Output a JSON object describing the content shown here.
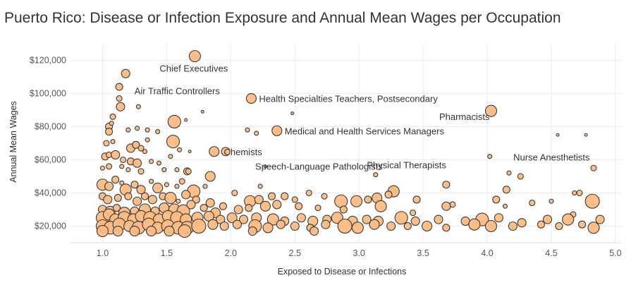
{
  "title": "Puerto Rico: Disease or Infection Exposure and Annual Mean Wages per Occupation",
  "chart_data": {
    "type": "scatter",
    "title": "Puerto Rico: Disease or Infection Exposure and Annual Mean Wages per Occupation",
    "xlabel": "Exposed to Disease or Infections",
    "ylabel": "Annual Mean Wages",
    "xlim": [
      0.75,
      5.05
    ],
    "ylim": [
      10000,
      130000
    ],
    "x_ticks": [
      "1.0",
      "1.5",
      "2.0",
      "2.5",
      "3.0",
      "3.5",
      "4.0",
      "4.5",
      "5.0"
    ],
    "y_ticks": [
      "$20,000",
      "$40,000",
      "$60,000",
      "$80,000",
      "$100,000",
      "$120,000"
    ],
    "grid": "both",
    "marker_color": "#FDBB82",
    "marker_edge": "#3A3A3A",
    "annotations": [
      {
        "text": "Chief Executives",
        "x": 1.72,
        "y": 122500
      },
      {
        "text": "Air Traffic Controllers",
        "x": 1.15,
        "y": 112000
      },
      {
        "text": "Health Specialties Teachers, Postsecondary",
        "x": 2.16,
        "y": 97000
      },
      {
        "text": "Medical and Health Services Managers",
        "x": 2.36,
        "y": 77500
      },
      {
        "text": "Pharmacists",
        "x": 4.03,
        "y": 89500
      },
      {
        "text": "Chemists",
        "x": 1.88,
        "y": 65000
      },
      {
        "text": "Nurse Anesthetists",
        "x": 4.8,
        "y": 55000
      },
      {
        "text": "Speech-Language Pathologists",
        "x": 2.18,
        "y": 54000
      },
      {
        "text": "Physical Therapists",
        "x": 3.68,
        "y": 55000
      }
    ],
    "points": [
      {
        "x": 1.72,
        "y": 122500,
        "s": 8
      },
      {
        "x": 1.18,
        "y": 112000,
        "s": 6
      },
      {
        "x": 1.13,
        "y": 104000,
        "s": 5
      },
      {
        "x": 2.16,
        "y": 97000,
        "s": 7
      },
      {
        "x": 1.13,
        "y": 97000,
        "s": 4
      },
      {
        "x": 1.14,
        "y": 92000,
        "s": 6
      },
      {
        "x": 1.28,
        "y": 92000,
        "s": 3
      },
      {
        "x": 1.08,
        "y": 86000,
        "s": 4
      },
      {
        "x": 1.05,
        "y": 80000,
        "s": 5
      },
      {
        "x": 1.07,
        "y": 82000,
        "s": 3
      },
      {
        "x": 1.78,
        "y": 89000,
        "s": 2
      },
      {
        "x": 2.48,
        "y": 88000,
        "s": 2
      },
      {
        "x": 4.03,
        "y": 89500,
        "s": 8
      },
      {
        "x": 1.56,
        "y": 83000,
        "s": 9
      },
      {
        "x": 1.05,
        "y": 77000,
        "s": 5
      },
      {
        "x": 1.2,
        "y": 78000,
        "s": 3
      },
      {
        "x": 1.27,
        "y": 79000,
        "s": 3
      },
      {
        "x": 1.35,
        "y": 78000,
        "s": 3
      },
      {
        "x": 1.43,
        "y": 77000,
        "s": 3
      },
      {
        "x": 1.65,
        "y": 84000,
        "s": 2
      },
      {
        "x": 2.13,
        "y": 78000,
        "s": 3
      },
      {
        "x": 2.2,
        "y": 76000,
        "s": 3
      },
      {
        "x": 2.36,
        "y": 77500,
        "s": 7
      },
      {
        "x": 4.55,
        "y": 75000,
        "s": 2
      },
      {
        "x": 4.77,
        "y": 75000,
        "s": 2
      },
      {
        "x": 1.03,
        "y": 70000,
        "s": 4
      },
      {
        "x": 1.08,
        "y": 71000,
        "s": 3
      },
      {
        "x": 1.22,
        "y": 67000,
        "s": 6
      },
      {
        "x": 1.26,
        "y": 69000,
        "s": 5
      },
      {
        "x": 1.3,
        "y": 67000,
        "s": 4
      },
      {
        "x": 1.35,
        "y": 72000,
        "s": 3
      },
      {
        "x": 1.55,
        "y": 71000,
        "s": 9
      },
      {
        "x": 1.6,
        "y": 66000,
        "s": 3
      },
      {
        "x": 1.02,
        "y": 62000,
        "s": 5
      },
      {
        "x": 1.05,
        "y": 63000,
        "s": 4
      },
      {
        "x": 1.1,
        "y": 63000,
        "s": 6
      },
      {
        "x": 1.16,
        "y": 60000,
        "s": 4
      },
      {
        "x": 1.22,
        "y": 59000,
        "s": 5
      },
      {
        "x": 1.27,
        "y": 58000,
        "s": 6
      },
      {
        "x": 1.33,
        "y": 65000,
        "s": 3
      },
      {
        "x": 1.38,
        "y": 59000,
        "s": 3
      },
      {
        "x": 1.44,
        "y": 58000,
        "s": 3
      },
      {
        "x": 1.53,
        "y": 62000,
        "s": 3
      },
      {
        "x": 1.68,
        "y": 65000,
        "s": 2
      },
      {
        "x": 1.87,
        "y": 65000,
        "s": 7
      },
      {
        "x": 1.96,
        "y": 65000,
        "s": 6
      },
      {
        "x": 4.02,
        "y": 62000,
        "s": 3
      },
      {
        "x": 1.0,
        "y": 55000,
        "s": 3
      },
      {
        "x": 1.05,
        "y": 56000,
        "s": 4
      },
      {
        "x": 1.15,
        "y": 56000,
        "s": 3
      },
      {
        "x": 1.2,
        "y": 54000,
        "s": 3
      },
      {
        "x": 1.3,
        "y": 53000,
        "s": 4
      },
      {
        "x": 1.48,
        "y": 54000,
        "s": 3
      },
      {
        "x": 1.58,
        "y": 54000,
        "s": 3
      },
      {
        "x": 1.66,
        "y": 53000,
        "s": 5
      },
      {
        "x": 1.67,
        "y": 53000,
        "s": 4
      },
      {
        "x": 1.84,
        "y": 50000,
        "s": 7
      },
      {
        "x": 2.27,
        "y": 56000,
        "s": 2
      },
      {
        "x": 3.13,
        "y": 51000,
        "s": 3
      },
      {
        "x": 4.17,
        "y": 52000,
        "s": 3
      },
      {
        "x": 4.26,
        "y": 50000,
        "s": 4
      },
      {
        "x": 4.83,
        "y": 55000,
        "s": 4
      },
      {
        "x": 1.0,
        "y": 45000,
        "s": 8
      },
      {
        "x": 1.05,
        "y": 44000,
        "s": 6
      },
      {
        "x": 1.1,
        "y": 48000,
        "s": 5
      },
      {
        "x": 1.15,
        "y": 46000,
        "s": 3
      },
      {
        "x": 1.18,
        "y": 42000,
        "s": 8
      },
      {
        "x": 1.25,
        "y": 45000,
        "s": 5
      },
      {
        "x": 1.3,
        "y": 42000,
        "s": 6
      },
      {
        "x": 1.38,
        "y": 47000,
        "s": 3
      },
      {
        "x": 1.43,
        "y": 43000,
        "s": 7
      },
      {
        "x": 1.5,
        "y": 45000,
        "s": 3
      },
      {
        "x": 1.58,
        "y": 44000,
        "s": 3
      },
      {
        "x": 1.62,
        "y": 47000,
        "s": 4
      },
      {
        "x": 1.71,
        "y": 41000,
        "s": 9
      },
      {
        "x": 1.8,
        "y": 44000,
        "s": 3
      },
      {
        "x": 2.23,
        "y": 44000,
        "s": 3
      },
      {
        "x": 3.26,
        "y": 42000,
        "s": 3
      },
      {
        "x": 3.27,
        "y": 41000,
        "s": 8
      },
      {
        "x": 3.68,
        "y": 45000,
        "s": 5
      },
      {
        "x": 4.15,
        "y": 42000,
        "s": 5
      },
      {
        "x": 4.68,
        "y": 40000,
        "s": 3
      },
      {
        "x": 4.72,
        "y": 40000,
        "s": 4
      },
      {
        "x": 1.0,
        "y": 38000,
        "s": 5
      },
      {
        "x": 1.04,
        "y": 36000,
        "s": 6
      },
      {
        "x": 1.12,
        "y": 37000,
        "s": 5
      },
      {
        "x": 1.2,
        "y": 38000,
        "s": 5
      },
      {
        "x": 1.27,
        "y": 35000,
        "s": 6
      },
      {
        "x": 1.33,
        "y": 38000,
        "s": 5
      },
      {
        "x": 1.39,
        "y": 36000,
        "s": 6
      },
      {
        "x": 1.47,
        "y": 38000,
        "s": 5
      },
      {
        "x": 1.53,
        "y": 37000,
        "s": 8
      },
      {
        "x": 1.59,
        "y": 35000,
        "s": 3
      },
      {
        "x": 1.65,
        "y": 39000,
        "s": 6
      },
      {
        "x": 1.73,
        "y": 36000,
        "s": 5
      },
      {
        "x": 1.84,
        "y": 34000,
        "s": 6
      },
      {
        "x": 2.03,
        "y": 40000,
        "s": 4
      },
      {
        "x": 2.15,
        "y": 35000,
        "s": 8
      },
      {
        "x": 2.22,
        "y": 36000,
        "s": 6
      },
      {
        "x": 2.32,
        "y": 38000,
        "s": 5
      },
      {
        "x": 2.42,
        "y": 38000,
        "s": 5
      },
      {
        "x": 2.5,
        "y": 36000,
        "s": 4
      },
      {
        "x": 2.61,
        "y": 40000,
        "s": 4
      },
      {
        "x": 2.73,
        "y": 38000,
        "s": 4
      },
      {
        "x": 2.86,
        "y": 35000,
        "s": 9
      },
      {
        "x": 2.98,
        "y": 35000,
        "s": 8
      },
      {
        "x": 3.07,
        "y": 36000,
        "s": 5
      },
      {
        "x": 3.14,
        "y": 37000,
        "s": 7
      },
      {
        "x": 3.23,
        "y": 39000,
        "s": 5
      },
      {
        "x": 3.45,
        "y": 36000,
        "s": 5
      },
      {
        "x": 3.73,
        "y": 33000,
        "s": 4
      },
      {
        "x": 4.07,
        "y": 36000,
        "s": 5
      },
      {
        "x": 4.35,
        "y": 34000,
        "s": 4
      },
      {
        "x": 4.5,
        "y": 35000,
        "s": 3
      },
      {
        "x": 4.82,
        "y": 35000,
        "s": 10
      },
      {
        "x": 1.0,
        "y": 30000,
        "s": 6
      },
      {
        "x": 1.06,
        "y": 29000,
        "s": 7
      },
      {
        "x": 1.11,
        "y": 31000,
        "s": 5
      },
      {
        "x": 1.17,
        "y": 28000,
        "s": 8
      },
      {
        "x": 1.25,
        "y": 29000,
        "s": 6
      },
      {
        "x": 1.33,
        "y": 30000,
        "s": 8
      },
      {
        "x": 1.41,
        "y": 29000,
        "s": 6
      },
      {
        "x": 1.48,
        "y": 31000,
        "s": 7
      },
      {
        "x": 1.56,
        "y": 30000,
        "s": 8
      },
      {
        "x": 1.63,
        "y": 29000,
        "s": 9
      },
      {
        "x": 1.69,
        "y": 33000,
        "s": 6
      },
      {
        "x": 1.79,
        "y": 31000,
        "s": 5
      },
      {
        "x": 1.88,
        "y": 28000,
        "s": 7
      },
      {
        "x": 1.94,
        "y": 32000,
        "s": 5
      },
      {
        "x": 2.06,
        "y": 30000,
        "s": 6
      },
      {
        "x": 2.14,
        "y": 31000,
        "s": 5
      },
      {
        "x": 2.27,
        "y": 32000,
        "s": 7
      },
      {
        "x": 2.36,
        "y": 33000,
        "s": 6
      },
      {
        "x": 2.53,
        "y": 32000,
        "s": 5
      },
      {
        "x": 2.68,
        "y": 31000,
        "s": 4
      },
      {
        "x": 2.88,
        "y": 30000,
        "s": 5
      },
      {
        "x": 3.17,
        "y": 32000,
        "s": 8
      },
      {
        "x": 3.42,
        "y": 28000,
        "s": 4
      },
      {
        "x": 3.68,
        "y": 32000,
        "s": 6
      },
      {
        "x": 4.14,
        "y": 32000,
        "s": 3
      },
      {
        "x": 4.67,
        "y": 27000,
        "s": 4
      },
      {
        "x": 1.0,
        "y": 25000,
        "s": 9
      },
      {
        "x": 1.05,
        "y": 27000,
        "s": 8
      },
      {
        "x": 1.1,
        "y": 24000,
        "s": 8
      },
      {
        "x": 1.17,
        "y": 25000,
        "s": 9
      },
      {
        "x": 1.24,
        "y": 24000,
        "s": 8
      },
      {
        "x": 1.3,
        "y": 26000,
        "s": 8
      },
      {
        "x": 1.37,
        "y": 25000,
        "s": 9
      },
      {
        "x": 1.44,
        "y": 24000,
        "s": 8
      },
      {
        "x": 1.51,
        "y": 26000,
        "s": 8
      },
      {
        "x": 1.58,
        "y": 25000,
        "s": 9
      },
      {
        "x": 1.65,
        "y": 24000,
        "s": 8
      },
      {
        "x": 1.74,
        "y": 25000,
        "s": 8
      },
      {
        "x": 1.83,
        "y": 26000,
        "s": 7
      },
      {
        "x": 1.92,
        "y": 24000,
        "s": 6
      },
      {
        "x": 2.01,
        "y": 25000,
        "s": 7
      },
      {
        "x": 2.1,
        "y": 24000,
        "s": 6
      },
      {
        "x": 2.2,
        "y": 25000,
        "s": 7
      },
      {
        "x": 2.33,
        "y": 24000,
        "s": 8
      },
      {
        "x": 2.42,
        "y": 23000,
        "s": 6
      },
      {
        "x": 2.55,
        "y": 25000,
        "s": 6
      },
      {
        "x": 2.64,
        "y": 23000,
        "s": 7
      },
      {
        "x": 2.75,
        "y": 24000,
        "s": 6
      },
      {
        "x": 2.83,
        "y": 25000,
        "s": 8
      },
      {
        "x": 2.95,
        "y": 23000,
        "s": 7
      },
      {
        "x": 3.06,
        "y": 24000,
        "s": 6
      },
      {
        "x": 3.15,
        "y": 23000,
        "s": 7
      },
      {
        "x": 3.33,
        "y": 25000,
        "s": 9
      },
      {
        "x": 3.44,
        "y": 23000,
        "s": 6
      },
      {
        "x": 3.62,
        "y": 24000,
        "s": 6
      },
      {
        "x": 3.83,
        "y": 23000,
        "s": 6
      },
      {
        "x": 3.96,
        "y": 24000,
        "s": 9
      },
      {
        "x": 4.09,
        "y": 25000,
        "s": 6
      },
      {
        "x": 4.27,
        "y": 22000,
        "s": 6
      },
      {
        "x": 4.47,
        "y": 24000,
        "s": 6
      },
      {
        "x": 4.63,
        "y": 24000,
        "s": 8
      },
      {
        "x": 4.88,
        "y": 24000,
        "s": 6
      },
      {
        "x": 1.0,
        "y": 20000,
        "s": 9
      },
      {
        "x": 1.06,
        "y": 19000,
        "s": 9
      },
      {
        "x": 1.13,
        "y": 21000,
        "s": 9
      },
      {
        "x": 1.21,
        "y": 20000,
        "s": 8
      },
      {
        "x": 1.28,
        "y": 19000,
        "s": 9
      },
      {
        "x": 1.36,
        "y": 21000,
        "s": 9
      },
      {
        "x": 1.43,
        "y": 19000,
        "s": 8
      },
      {
        "x": 1.51,
        "y": 20000,
        "s": 9
      },
      {
        "x": 1.59,
        "y": 19000,
        "s": 9
      },
      {
        "x": 1.66,
        "y": 19000,
        "s": 9
      },
      {
        "x": 1.75,
        "y": 20000,
        "s": 10
      },
      {
        "x": 1.86,
        "y": 21000,
        "s": 7
      },
      {
        "x": 1.95,
        "y": 20000,
        "s": 6
      },
      {
        "x": 2.05,
        "y": 21000,
        "s": 6
      },
      {
        "x": 2.19,
        "y": 20000,
        "s": 9
      },
      {
        "x": 2.29,
        "y": 19000,
        "s": 7
      },
      {
        "x": 2.39,
        "y": 21000,
        "s": 6
      },
      {
        "x": 2.5,
        "y": 20000,
        "s": 6
      },
      {
        "x": 2.62,
        "y": 19000,
        "s": 5
      },
      {
        "x": 2.74,
        "y": 21000,
        "s": 6
      },
      {
        "x": 2.89,
        "y": 20000,
        "s": 10
      },
      {
        "x": 2.99,
        "y": 19000,
        "s": 8
      },
      {
        "x": 3.12,
        "y": 21000,
        "s": 7
      },
      {
        "x": 3.25,
        "y": 20000,
        "s": 6
      },
      {
        "x": 3.38,
        "y": 20000,
        "s": 5
      },
      {
        "x": 3.53,
        "y": 20000,
        "s": 7
      },
      {
        "x": 3.68,
        "y": 19000,
        "s": 5
      },
      {
        "x": 3.9,
        "y": 21000,
        "s": 8
      },
      {
        "x": 4.03,
        "y": 20000,
        "s": 8
      },
      {
        "x": 4.2,
        "y": 20000,
        "s": 6
      },
      {
        "x": 4.42,
        "y": 21000,
        "s": 5
      },
      {
        "x": 4.56,
        "y": 20000,
        "s": 5
      },
      {
        "x": 4.74,
        "y": 21000,
        "s": 5
      },
      {
        "x": 4.83,
        "y": 19000,
        "s": 8
      },
      {
        "x": 1.0,
        "y": 17000,
        "s": 8
      },
      {
        "x": 1.12,
        "y": 17000,
        "s": 7
      },
      {
        "x": 1.25,
        "y": 17000,
        "s": 7
      },
      {
        "x": 1.38,
        "y": 17000,
        "s": 7
      },
      {
        "x": 1.52,
        "y": 17000,
        "s": 7
      },
      {
        "x": 1.64,
        "y": 17000,
        "s": 9
      },
      {
        "x": 2.17,
        "y": 17000,
        "s": 6
      },
      {
        "x": 2.65,
        "y": 17000,
        "s": 6
      }
    ]
  }
}
